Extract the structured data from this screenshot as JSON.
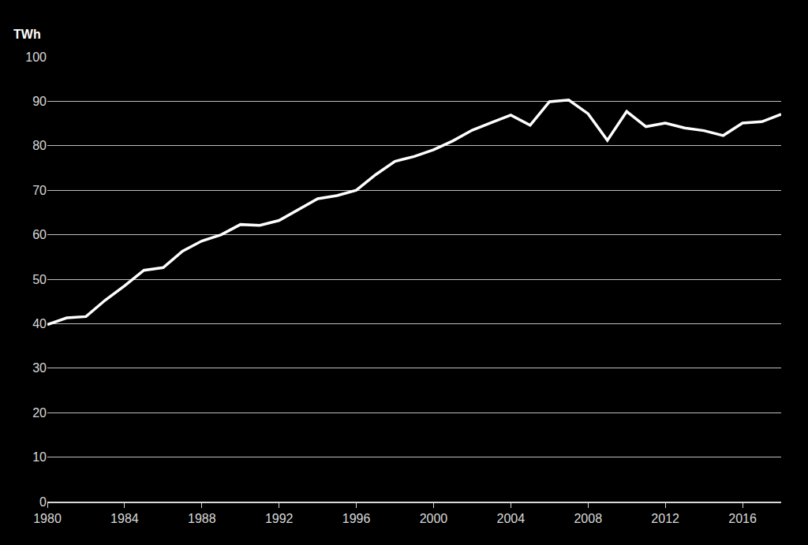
{
  "chart_data": {
    "type": "line",
    "y_label": "TWh",
    "x": [
      1980,
      1981,
      1982,
      1983,
      1984,
      1985,
      1986,
      1987,
      1988,
      1989,
      1990,
      1991,
      1992,
      1993,
      1994,
      1995,
      1996,
      1997,
      1998,
      1999,
      2000,
      2001,
      2002,
      2003,
      2004,
      2005,
      2006,
      2007,
      2008,
      2009,
      2010,
      2011,
      2012,
      2013,
      2014,
      2015,
      2016,
      2017,
      2018
    ],
    "values": [
      39.8,
      41.3,
      41.6,
      45.3,
      48.5,
      52.0,
      52.6,
      56.3,
      58.6,
      60.0,
      62.3,
      62.1,
      63.2,
      65.6,
      68.1,
      68.8,
      70.0,
      73.5,
      76.5,
      77.6,
      79.1,
      81.1,
      83.5,
      85.2,
      86.9,
      84.6,
      89.9,
      90.3,
      87.2,
      81.2,
      87.7,
      84.3,
      85.1,
      84.0,
      83.4,
      82.3,
      85.1,
      85.4,
      87.1
    ],
    "color": "#ffffff",
    "xlim": [
      1980,
      2018
    ],
    "xticks": [
      1980,
      1984,
      1988,
      1992,
      1996,
      2000,
      2004,
      2008,
      2012,
      2016
    ],
    "ylim": [
      0,
      100
    ],
    "yticks": [
      0,
      10,
      20,
      30,
      40,
      50,
      60,
      70,
      80,
      90,
      100
    ],
    "grid": true
  }
}
